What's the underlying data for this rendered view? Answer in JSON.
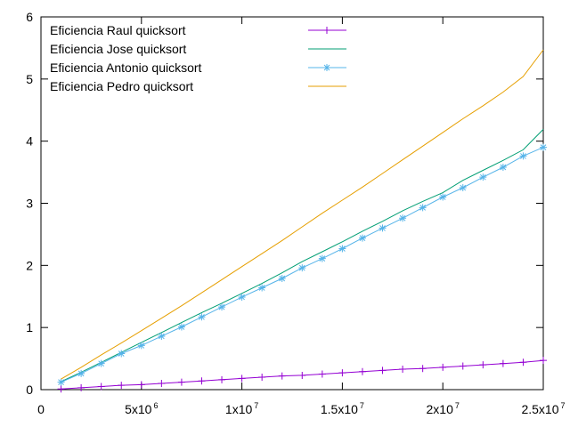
{
  "chart_data": {
    "type": "line",
    "title": "",
    "xlabel": "",
    "ylabel": "",
    "xlim": [
      0,
      25000000
    ],
    "ylim": [
      0,
      6
    ],
    "grid": false,
    "legend_position": "top-left",
    "x_ticks": [
      {
        "value": 0,
        "base": "0",
        "exp": ""
      },
      {
        "value": 5000000,
        "base": "5x10",
        "exp": "6"
      },
      {
        "value": 10000000,
        "base": "1x10",
        "exp": "7"
      },
      {
        "value": 15000000,
        "base": "1.5x10",
        "exp": "7"
      },
      {
        "value": 20000000,
        "base": "2x10",
        "exp": "7"
      },
      {
        "value": 25000000,
        "base": "2.5x10",
        "exp": "7"
      }
    ],
    "y_ticks": [
      {
        "value": 0,
        "label": "0"
      },
      {
        "value": 1,
        "label": "1"
      },
      {
        "value": 2,
        "label": "2"
      },
      {
        "value": 3,
        "label": "3"
      },
      {
        "value": 4,
        "label": "4"
      },
      {
        "value": 5,
        "label": "5"
      },
      {
        "value": 6,
        "label": "6"
      }
    ],
    "x": [
      1000000,
      2000000,
      3000000,
      4000000,
      5000000,
      6000000,
      7000000,
      8000000,
      9000000,
      10000000,
      11000000,
      12000000,
      13000000,
      14000000,
      15000000,
      16000000,
      17000000,
      18000000,
      19000000,
      20000000,
      21000000,
      22000000,
      23000000,
      24000000,
      25000000
    ],
    "series": [
      {
        "name": "Eficiencia Raul quicksort",
        "color": "#9400d3",
        "marker": "plus",
        "values": [
          0.01,
          0.03,
          0.05,
          0.07,
          0.08,
          0.1,
          0.12,
          0.14,
          0.16,
          0.18,
          0.2,
          0.22,
          0.23,
          0.25,
          0.27,
          0.29,
          0.31,
          0.33,
          0.34,
          0.36,
          0.38,
          0.4,
          0.42,
          0.44,
          0.47
        ]
      },
      {
        "name": "Eficiencia Jose quicksort",
        "color": "#009e73",
        "marker": "none",
        "values": [
          0.13,
          0.28,
          0.44,
          0.6,
          0.76,
          0.92,
          1.08,
          1.24,
          1.39,
          1.55,
          1.71,
          1.88,
          2.06,
          2.22,
          2.38,
          2.55,
          2.71,
          2.88,
          3.03,
          3.17,
          3.37,
          3.53,
          3.69,
          3.86,
          4.19
        ]
      },
      {
        "name": "Eficiencia Antonio quicksort",
        "color": "#56b4e9",
        "marker": "star",
        "values": [
          0.12,
          0.26,
          0.42,
          0.58,
          0.71,
          0.86,
          1.01,
          1.17,
          1.33,
          1.49,
          1.64,
          1.79,
          1.96,
          2.11,
          2.27,
          2.44,
          2.6,
          2.76,
          2.93,
          3.1,
          3.25,
          3.42,
          3.58,
          3.76,
          3.9
        ]
      },
      {
        "name": "Eficiencia Pedro quicksort",
        "color": "#e69f00",
        "marker": "none",
        "values": [
          0.17,
          0.36,
          0.56,
          0.75,
          0.95,
          1.15,
          1.35,
          1.56,
          1.77,
          1.98,
          2.19,
          2.4,
          2.62,
          2.84,
          3.05,
          3.26,
          3.48,
          3.7,
          3.92,
          4.14,
          4.36,
          4.57,
          4.79,
          5.04,
          5.47
        ]
      }
    ]
  }
}
